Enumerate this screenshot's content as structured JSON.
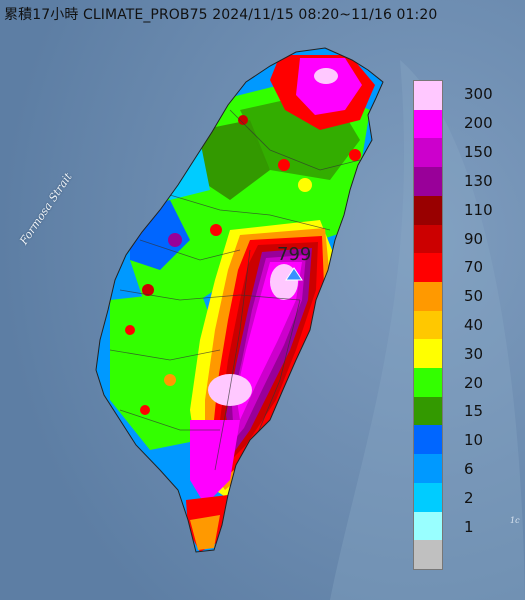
{
  "title": "累積17小時 CLIMATE_PROB75 2024/11/15 08:20~11/16 01:20",
  "strait_label": "Formosa Strait",
  "max_value_label": "799",
  "edge_label": "1c",
  "legend": [
    {
      "label": "300",
      "color": "#ffc8ff"
    },
    {
      "label": "200",
      "color": "#ff00ff"
    },
    {
      "label": "150",
      "color": "#cc00cc"
    },
    {
      "label": "130",
      "color": "#990099"
    },
    {
      "label": "110",
      "color": "#990000"
    },
    {
      "label": "90",
      "color": "#cc0000"
    },
    {
      "label": "70",
      "color": "#ff0000"
    },
    {
      "label": "50",
      "color": "#ff9900"
    },
    {
      "label": "40",
      "color": "#ffc800"
    },
    {
      "label": "30",
      "color": "#ffff00"
    },
    {
      "label": "20",
      "color": "#33ff00"
    },
    {
      "label": "15",
      "color": "#339900"
    },
    {
      "label": "10",
      "color": "#0066ff"
    },
    {
      "label": "6",
      "color": "#0099ff"
    },
    {
      "label": "2",
      "color": "#00ccff"
    },
    {
      "label": "1",
      "color": "#99ffff"
    },
    {
      "label": "",
      "color": "#c0c0c0"
    }
  ]
}
